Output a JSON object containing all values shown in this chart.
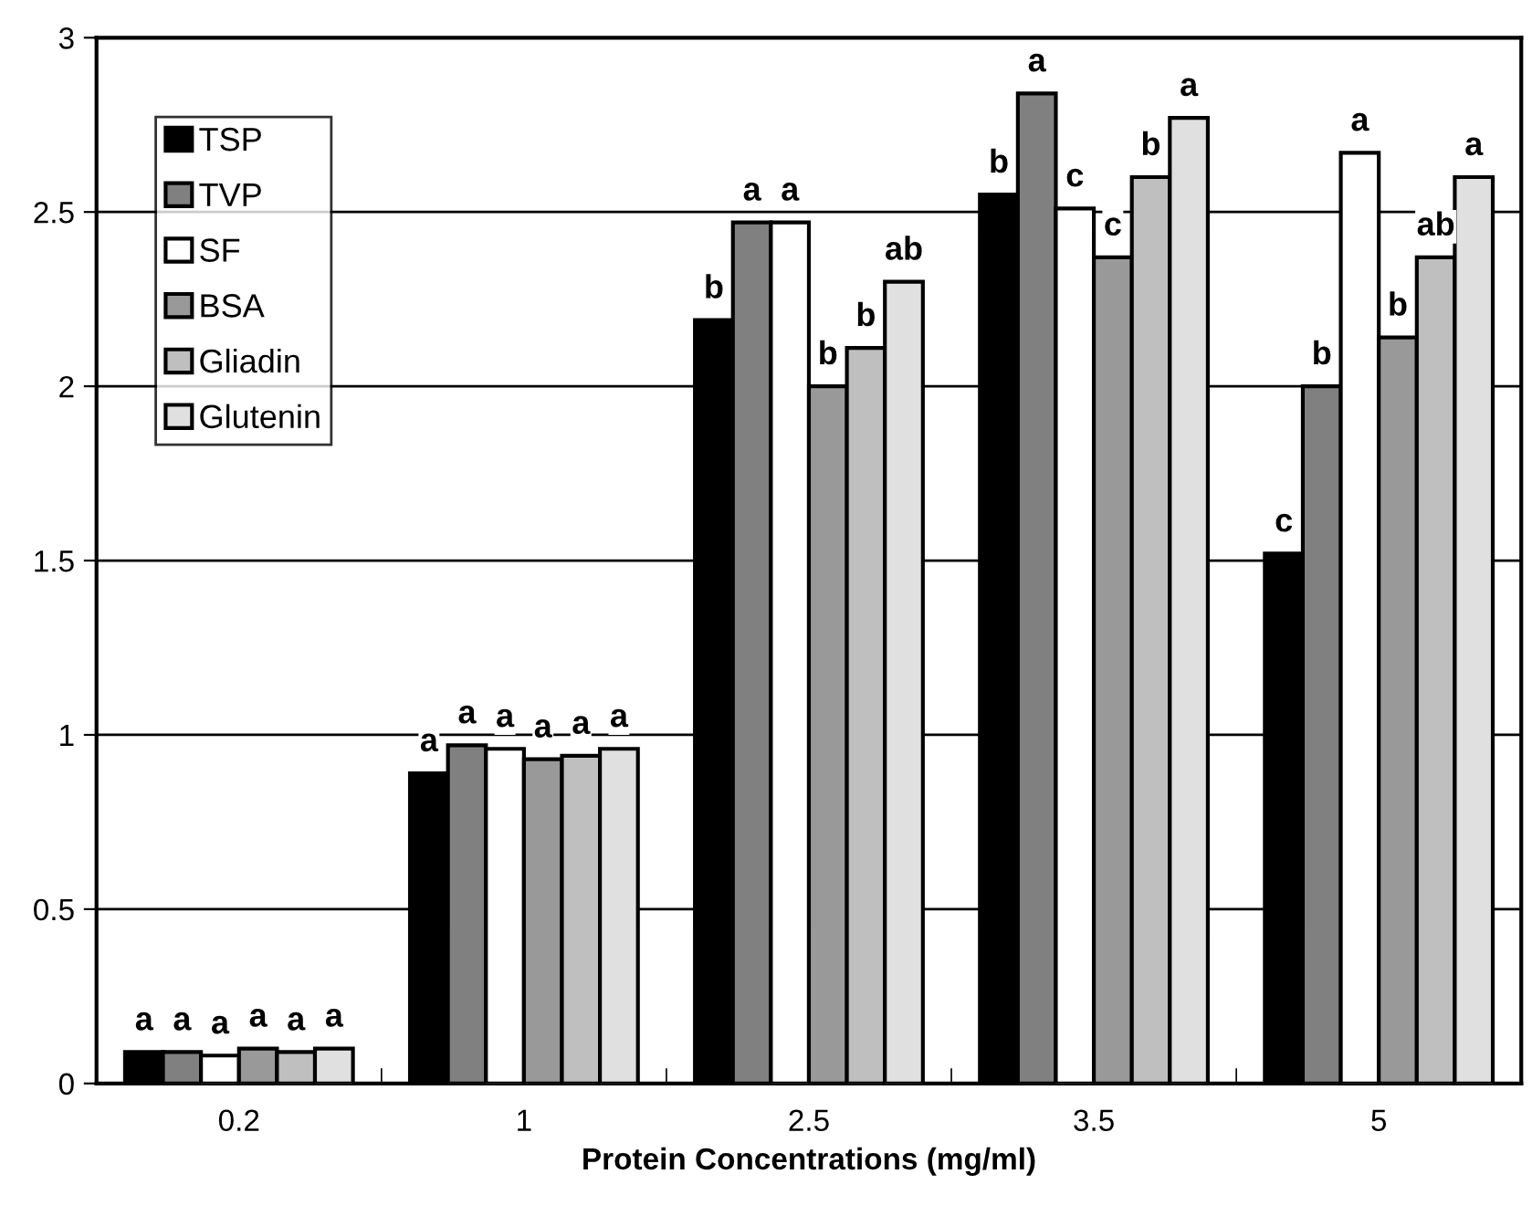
{
  "chart_data": {
    "type": "bar",
    "xlabel": "Protein Concentrations (mg/ml)",
    "categories": [
      "0.2",
      "1",
      "2.5",
      "3.5",
      "5"
    ],
    "series": [
      {
        "name": "TSP",
        "color": "#000000",
        "values": [
          0.09,
          0.89,
          2.19,
          2.55,
          1.52
        ],
        "value_labels": [
          "a",
          "a",
          "b",
          "b",
          "c"
        ]
      },
      {
        "name": "TVP",
        "color": "#808080",
        "values": [
          0.09,
          0.97,
          2.47,
          2.84,
          2.0
        ],
        "value_labels": [
          "a",
          "a",
          "a",
          "a",
          "b"
        ]
      },
      {
        "name": "SF",
        "color": "#ffffff",
        "values": [
          0.08,
          0.96,
          2.47,
          2.51,
          2.67
        ],
        "value_labels": [
          "a",
          "a",
          "a",
          "c",
          "a"
        ]
      },
      {
        "name": "BSA",
        "color": "#999999",
        "values": [
          0.1,
          0.93,
          2.0,
          2.37,
          2.14
        ],
        "value_labels": [
          "a",
          "a",
          "b",
          "c",
          "b"
        ]
      },
      {
        "name": "Gliadin",
        "color": "#bfbfbf",
        "values": [
          0.09,
          0.94,
          2.11,
          2.6,
          2.37
        ],
        "value_labels": [
          "a",
          "a",
          "b",
          "b",
          "ab"
        ]
      },
      {
        "name": "Glutenin",
        "color": "#e0e0e0",
        "values": [
          0.1,
          0.96,
          2.3,
          2.77,
          2.6
        ],
        "value_labels": [
          "a",
          "a",
          "ab",
          "a",
          "a"
        ]
      }
    ],
    "ylim": [
      0,
      3
    ],
    "yticks": [
      0,
      0.5,
      1,
      1.5,
      2,
      2.5,
      3
    ],
    "grid": "y",
    "legend": "top left"
  }
}
